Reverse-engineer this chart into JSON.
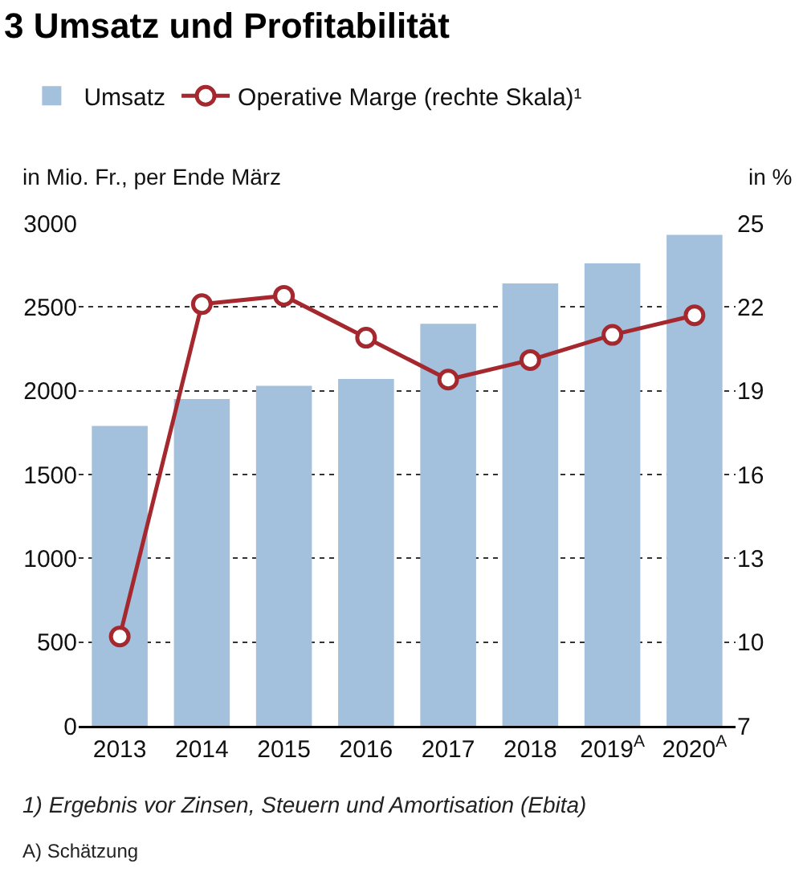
{
  "chart_data": {
    "type": "bar",
    "title": "3 Umsatz und Profitabilität",
    "categories": [
      "2013",
      "2014",
      "2015",
      "2016",
      "2017",
      "2018",
      "2019$^{A}$",
      "2020$^{A}$"
    ],
    "series": [
      {
        "name": "Umsatz",
        "color": "#a3c0dc",
        "values": [
          1790,
          1950,
          2030,
          2070,
          2400,
          2640,
          2760,
          2930
        ]
      },
      {
        "name": "Operative Marge (rechte Skala)¹",
        "type": "line",
        "axis": "y2",
        "color": "#a5282e",
        "marker": "circle",
        "values": [
          10.2,
          22.1,
          22.4,
          20.9,
          19.4,
          20.1,
          21.0,
          21.7
        ]
      }
    ],
    "ylabel": "in Mio. Fr., per Ende März",
    "y2label": "in %",
    "ylim": [
      0,
      3000
    ],
    "yticks": [
      0,
      500,
      1000,
      1500,
      2000,
      2500,
      3000
    ],
    "y2lim": [
      7,
      25
    ],
    "y2ticks": [
      7,
      10,
      13,
      16,
      19,
      22,
      25
    ],
    "grid": "y",
    "legend": "top",
    "annotations": [
      "1) Ergebnis vor Zinsen, Steuern und Amortisation (Ebita)",
      "A) Schätzung"
    ]
  }
}
